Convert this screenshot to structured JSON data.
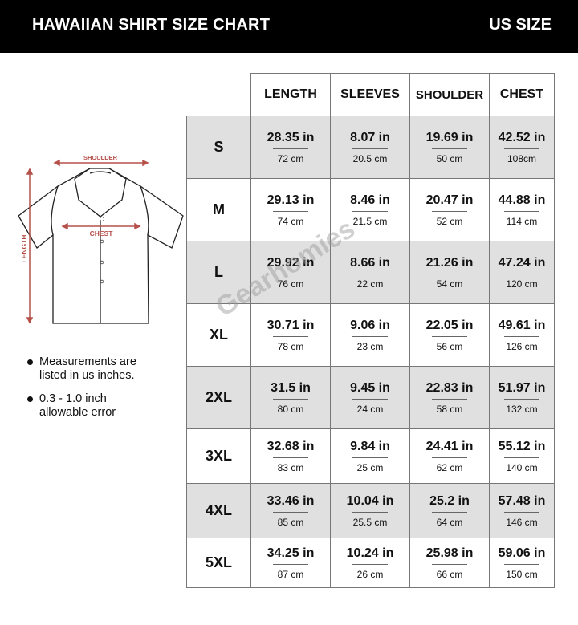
{
  "header": {
    "title": "HAWAIIAN SHIRT SIZE CHART",
    "unit_label": "US SIZE"
  },
  "diagram": {
    "shoulder_label": "SHOULDER",
    "chest_label": "CHEST",
    "length_label": "LENGTH",
    "arrow_color": "#b5504a"
  },
  "notes": [
    "Measurements are listed in us inches.",
    "0.3 - 1.0 inch allowable error"
  ],
  "watermark": "Gearhomies",
  "table": {
    "columns": [
      "LENGTH",
      "SLEEVES",
      "SHOULDER",
      "CHEST"
    ],
    "rows": [
      {
        "size": "S",
        "cells": [
          {
            "in": "28.35 in",
            "cm": "72 cm"
          },
          {
            "in": "8.07 in",
            "cm": "20.5 cm"
          },
          {
            "in": "19.69 in",
            "cm": "50 cm"
          },
          {
            "in": "42.52 in",
            "cm": "108cm"
          }
        ]
      },
      {
        "size": "M",
        "cells": [
          {
            "in": "29.13 in",
            "cm": "74 cm"
          },
          {
            "in": "8.46 in",
            "cm": "21.5 cm"
          },
          {
            "in": "20.47 in",
            "cm": "52 cm"
          },
          {
            "in": "44.88 in",
            "cm": "114 cm"
          }
        ]
      },
      {
        "size": "L",
        "cells": [
          {
            "in": "29.92 in",
            "cm": "76 cm"
          },
          {
            "in": "8.66 in",
            "cm": "22 cm"
          },
          {
            "in": "21.26 in",
            "cm": "54 cm"
          },
          {
            "in": "47.24 in",
            "cm": "120 cm"
          }
        ]
      },
      {
        "size": "XL",
        "cells": [
          {
            "in": "30.71 in",
            "cm": "78 cm"
          },
          {
            "in": "9.06 in",
            "cm": "23 cm"
          },
          {
            "in": "22.05 in",
            "cm": "56 cm"
          },
          {
            "in": "49.61 in",
            "cm": "126 cm"
          }
        ]
      },
      {
        "size": "2XL",
        "cells": [
          {
            "in": "31.5 in",
            "cm": "80 cm"
          },
          {
            "in": "9.45 in",
            "cm": "24 cm"
          },
          {
            "in": "22.83 in",
            "cm": "58 cm"
          },
          {
            "in": "51.97 in",
            "cm": "132 cm"
          }
        ]
      },
      {
        "size": "3XL",
        "cells": [
          {
            "in": "32.68 in",
            "cm": "83 cm"
          },
          {
            "in": "9.84 in",
            "cm": "25 cm"
          },
          {
            "in": "24.41 in",
            "cm": "62 cm"
          },
          {
            "in": "55.12 in",
            "cm": "140 cm"
          }
        ]
      },
      {
        "size": "4XL",
        "cells": [
          {
            "in": "33.46 in",
            "cm": "85 cm"
          },
          {
            "in": "10.04 in",
            "cm": "25.5 cm"
          },
          {
            "in": "25.2 in",
            "cm": "64 cm"
          },
          {
            "in": "57.48 in",
            "cm": "146 cm"
          }
        ]
      },
      {
        "size": "5XL",
        "cells": [
          {
            "in": "34.25 in",
            "cm": "87 cm"
          },
          {
            "in": "10.24 in",
            "cm": "26 cm"
          },
          {
            "in": "25.98 in",
            "cm": "66 cm"
          },
          {
            "in": "59.06 in",
            "cm": "150 cm"
          }
        ]
      }
    ]
  }
}
